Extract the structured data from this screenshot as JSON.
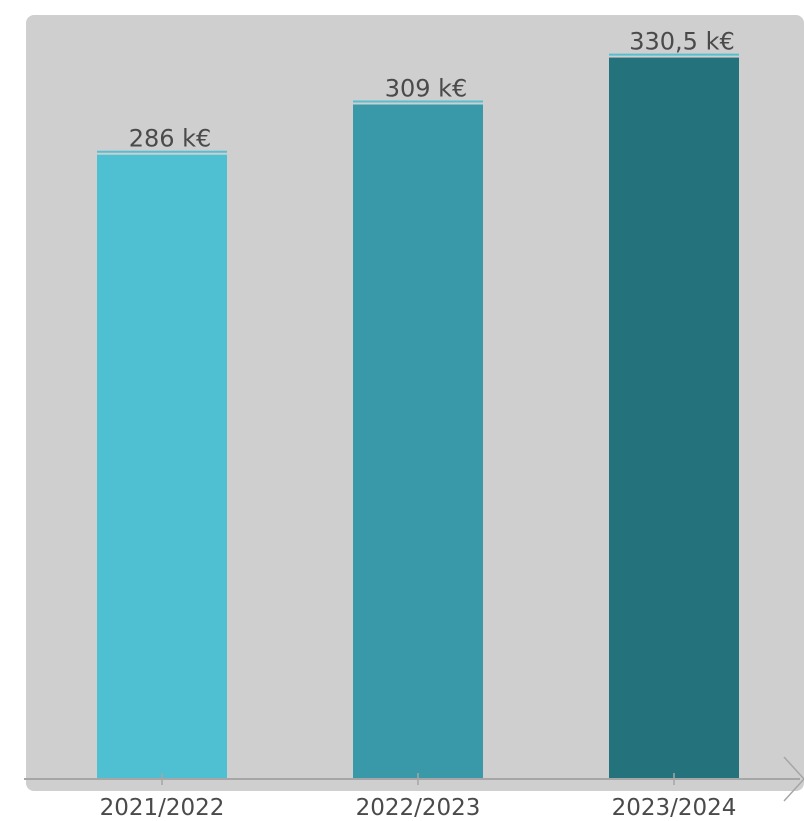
{
  "chart_data": {
    "type": "bar",
    "title": "",
    "xlabel": "",
    "ylabel": "",
    "categories": [
      "2021/2022",
      "2022/2023",
      "2023/2024"
    ],
    "values": [
      286,
      309,
      330.5
    ],
    "value_labels": [
      "286 k€",
      "309 k€",
      "330,5 k€"
    ],
    "unit": "k€",
    "ylim": [
      0,
      350
    ],
    "grid": false,
    "legend": "none",
    "bar_colors": [
      "#4fbfd2",
      "#3a99a8",
      "#24737c"
    ],
    "label_underline_color": "#55bfd0",
    "plot_background": "#cfcfcf",
    "axis_color": "#a6a6a6"
  }
}
